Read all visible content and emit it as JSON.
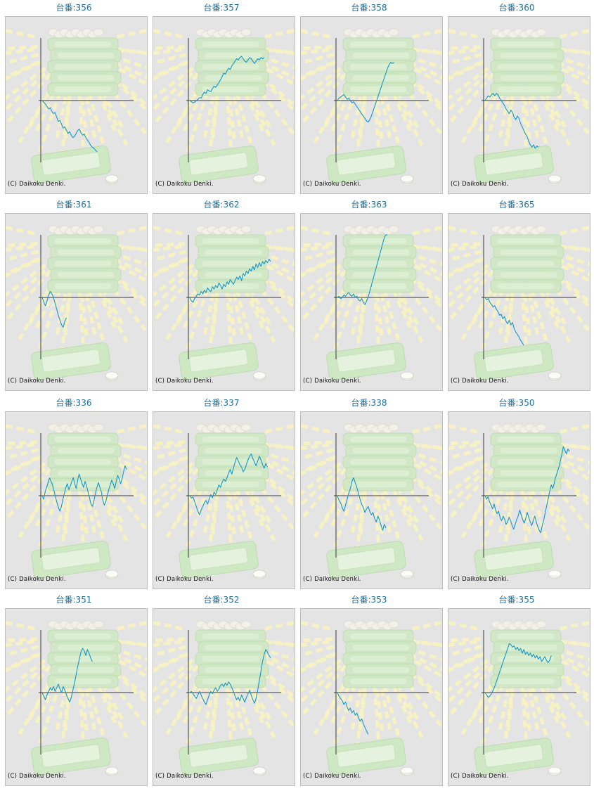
{
  "colors": {
    "title": "#1b6fa0",
    "line": "#1597c8",
    "axis": "#3a3a3a",
    "background": "#e4e4e4",
    "artwork_green": "#cfe8c4",
    "artwork_rays": "#f6f2c4"
  },
  "copyright": "(C) Daikoku Denki.",
  "machines": [
    {
      "title": "台番:356",
      "chart_data": {
        "type": "line",
        "y": [
          0,
          -3,
          -6,
          -10,
          -14,
          -12,
          -18,
          -22,
          -20,
          -28,
          -35,
          -33,
          -40,
          -46,
          -44,
          -50,
          -55,
          -52,
          -58,
          -62,
          -60,
          -55,
          -50,
          -48,
          -54,
          -58,
          -56,
          -62,
          -66,
          -70,
          -75,
          -78,
          -80,
          -83,
          -86
        ]
      }
    },
    {
      "title": "台番:357",
      "chart_data": {
        "type": "line",
        "y": [
          0,
          -2,
          -4,
          -3,
          0,
          2,
          5,
          4,
          10,
          14,
          12,
          18,
          16,
          15,
          20,
          24,
          22,
          26,
          30,
          35,
          40,
          46,
          44,
          50,
          54,
          52,
          58,
          62,
          66,
          70,
          68,
          72,
          74,
          70,
          66,
          64,
          68,
          72,
          70,
          66,
          62,
          66,
          70,
          68,
          72,
          70,
          72
        ]
      }
    },
    {
      "title": "台番:358",
      "chart_data": {
        "type": "line",
        "y": [
          0,
          4,
          6,
          8,
          10,
          6,
          2,
          4,
          0,
          -4,
          -2,
          -6,
          -10,
          -14,
          -18,
          -22,
          -26,
          -30,
          -34,
          -36,
          -32,
          -26,
          -18,
          -10,
          -2,
          6,
          14,
          22,
          30,
          38,
          46,
          54,
          60,
          64,
          62,
          64
        ]
      }
    },
    {
      "title": "台番:360",
      "chart_data": {
        "type": "line",
        "y": [
          0,
          4,
          8,
          6,
          10,
          12,
          8,
          12,
          10,
          4,
          0,
          -4,
          -8,
          -14,
          -18,
          -22,
          -16,
          -20,
          -28,
          -32,
          -26,
          -30,
          -38,
          -44,
          -50,
          -56,
          -60,
          -68,
          -74,
          -78,
          -74,
          -80,
          -76,
          -78
        ]
      }
    },
    {
      "title": "台番:361",
      "chart_data": {
        "type": "line",
        "y": [
          0,
          -8,
          -14,
          -6,
          4,
          10,
          6,
          0,
          -10,
          -20,
          -30,
          -38,
          -46,
          -50,
          -40,
          -34
        ]
      }
    },
    {
      "title": "台番:362",
      "chart_data": {
        "type": "line",
        "y": [
          0,
          -6,
          -8,
          -2,
          2,
          6,
          4,
          10,
          6,
          12,
          8,
          16,
          12,
          10,
          18,
          14,
          20,
          16,
          24,
          20,
          14,
          22,
          18,
          26,
          22,
          30,
          26,
          22,
          28,
          34,
          30,
          36,
          28,
          40,
          36,
          44,
          40,
          48,
          44,
          52,
          46,
          56,
          50,
          58,
          52,
          60,
          56,
          62,
          58,
          64,
          60
        ]
      }
    },
    {
      "title": "台番:363",
      "chart_data": {
        "type": "line",
        "y": [
          0,
          2,
          -2,
          0,
          4,
          2,
          6,
          8,
          4,
          2,
          6,
          0,
          2,
          -4,
          -6,
          -2,
          -8,
          -12,
          -6,
          0,
          10,
          20,
          30,
          40,
          50,
          60,
          70,
          80,
          90,
          100,
          110,
          120
        ]
      }
    },
    {
      "title": "台番:365",
      "chart_data": {
        "type": "line",
        "y": [
          0,
          -4,
          -2,
          -8,
          -12,
          -16,
          -14,
          -20,
          -24,
          -30,
          -28,
          -36,
          -32,
          -40,
          -44,
          -38,
          -46,
          -42,
          -52,
          -58,
          -62,
          -66,
          -72,
          -76,
          -80
        ]
      }
    },
    {
      "title": "台番:336",
      "chart_data": {
        "type": "line",
        "y": [
          0,
          -6,
          6,
          14,
          22,
          30,
          24,
          18,
          8,
          -2,
          -12,
          -20,
          -26,
          -18,
          -6,
          4,
          14,
          20,
          10,
          16,
          24,
          30,
          20,
          12,
          26,
          36,
          28,
          20,
          14,
          24,
          16,
          6,
          -4,
          -14,
          -18,
          -8,
          4,
          14,
          22,
          14,
          6,
          -8,
          -16,
          -10,
          0,
          10,
          18,
          26,
          20,
          12,
          24,
          34,
          28,
          20,
          28,
          40,
          50,
          44
        ]
      }
    },
    {
      "title": "台番:337",
      "chart_data": {
        "type": "line",
        "y": [
          0,
          -4,
          -2,
          -10,
          -18,
          -26,
          -32,
          -24,
          -18,
          -12,
          -8,
          -14,
          -6,
          2,
          -4,
          6,
          2,
          10,
          18,
          14,
          22,
          28,
          24,
          30,
          38,
          44,
          36,
          46,
          56,
          64,
          58,
          52,
          48,
          40,
          44,
          52,
          60,
          66,
          70,
          62,
          56,
          50,
          58,
          66,
          60,
          52,
          46,
          54,
          48
        ]
      }
    },
    {
      "title": "台番:338",
      "chart_data": {
        "type": "line",
        "y": [
          0,
          -8,
          -12,
          -20,
          -26,
          -16,
          -6,
          4,
          12,
          24,
          30,
          22,
          14,
          4,
          -6,
          -14,
          -20,
          -28,
          -22,
          -18,
          -26,
          -32,
          -28,
          -38,
          -44,
          -34,
          -40,
          -50,
          -58,
          -48,
          -54
        ]
      }
    },
    {
      "title": "台番:350",
      "chart_data": {
        "type": "line",
        "y": [
          0,
          -6,
          -2,
          -10,
          -16,
          -22,
          -14,
          -24,
          -30,
          -26,
          -36,
          -42,
          -34,
          -40,
          -48,
          -44,
          -36,
          -42,
          -50,
          -56,
          -48,
          -40,
          -34,
          -24,
          -32,
          -40,
          -46,
          -38,
          -28,
          -36,
          -44,
          -50,
          -42,
          -34,
          -44,
          -52,
          -58,
          -62,
          -50,
          -40,
          -28,
          -16,
          -4,
          8,
          18,
          12,
          22,
          32,
          40,
          48,
          58,
          70,
          82,
          76,
          70,
          78,
          74
        ]
      }
    },
    {
      "title": "台番:351",
      "chart_data": {
        "type": "line",
        "y": [
          0,
          -6,
          -12,
          -4,
          2,
          8,
          4,
          10,
          2,
          8,
          14,
          6,
          0,
          10,
          4,
          -4,
          -10,
          -16,
          -8,
          4,
          16,
          30,
          44,
          56,
          68,
          74,
          70,
          62,
          72,
          66,
          58,
          52
        ]
      }
    },
    {
      "title": "台番:352",
      "chart_data": {
        "type": "line",
        "y": [
          0,
          2,
          -2,
          -6,
          -10,
          -4,
          2,
          -4,
          -10,
          -16,
          -20,
          -12,
          -4,
          2,
          -2,
          4,
          8,
          2,
          6,
          12,
          14,
          10,
          16,
          12,
          18,
          14,
          8,
          2,
          -6,
          -12,
          -8,
          -14,
          -4,
          -10,
          -16,
          -8,
          -2,
          4,
          -4,
          -12,
          -18,
          -10,
          4,
          20,
          36,
          52,
          64,
          72,
          68,
          62,
          58
        ]
      }
    },
    {
      "title": "台番:353",
      "chart_data": {
        "type": "line",
        "y": [
          0,
          -6,
          -10,
          -14,
          -20,
          -16,
          -24,
          -30,
          -26,
          -34,
          -30,
          -38,
          -34,
          -42,
          -48,
          -44,
          -52,
          -58,
          -64,
          -70
        ]
      }
    },
    {
      "title": "台番:355",
      "chart_data": {
        "type": "line",
        "y": [
          0,
          -4,
          -8,
          -6,
          -2,
          4,
          10,
          18,
          26,
          34,
          42,
          50,
          58,
          66,
          74,
          82,
          80,
          76,
          78,
          72,
          76,
          70,
          74,
          66,
          72,
          64,
          68,
          62,
          66,
          60,
          64,
          58,
          62,
          56,
          60,
          52,
          56,
          60,
          54,
          50,
          54,
          62
        ]
      }
    }
  ]
}
